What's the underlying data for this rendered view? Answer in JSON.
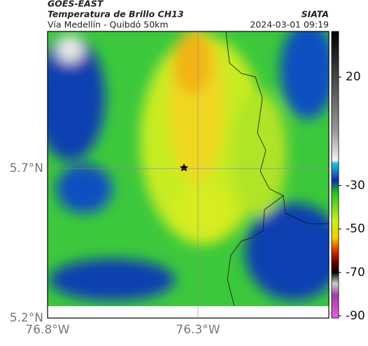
{
  "header": {
    "satellite": "GOES-EAST",
    "product": "Temperatura de Brillo CH13",
    "region": "Vía Medellín - Quibdó 50km",
    "source": "SIATA",
    "datetime": "2024-03-01 09:19"
  },
  "map": {
    "xlim": [
      -76.8,
      -75.865
    ],
    "ylim": [
      5.2,
      6.158
    ],
    "xticks": [
      {
        "value": -76.8,
        "label": "76.8°W"
      },
      {
        "value": -76.3,
        "label": "76.3°W"
      }
    ],
    "yticks": [
      {
        "value": 5.7,
        "label": "5.7°N"
      },
      {
        "value": 5.2,
        "label": "5.2°N"
      }
    ],
    "colorbar": {
      "range": [
        -91,
        41
      ],
      "ticks": [
        20,
        -30,
        -50,
        -70,
        -90
      ]
    }
  }
}
